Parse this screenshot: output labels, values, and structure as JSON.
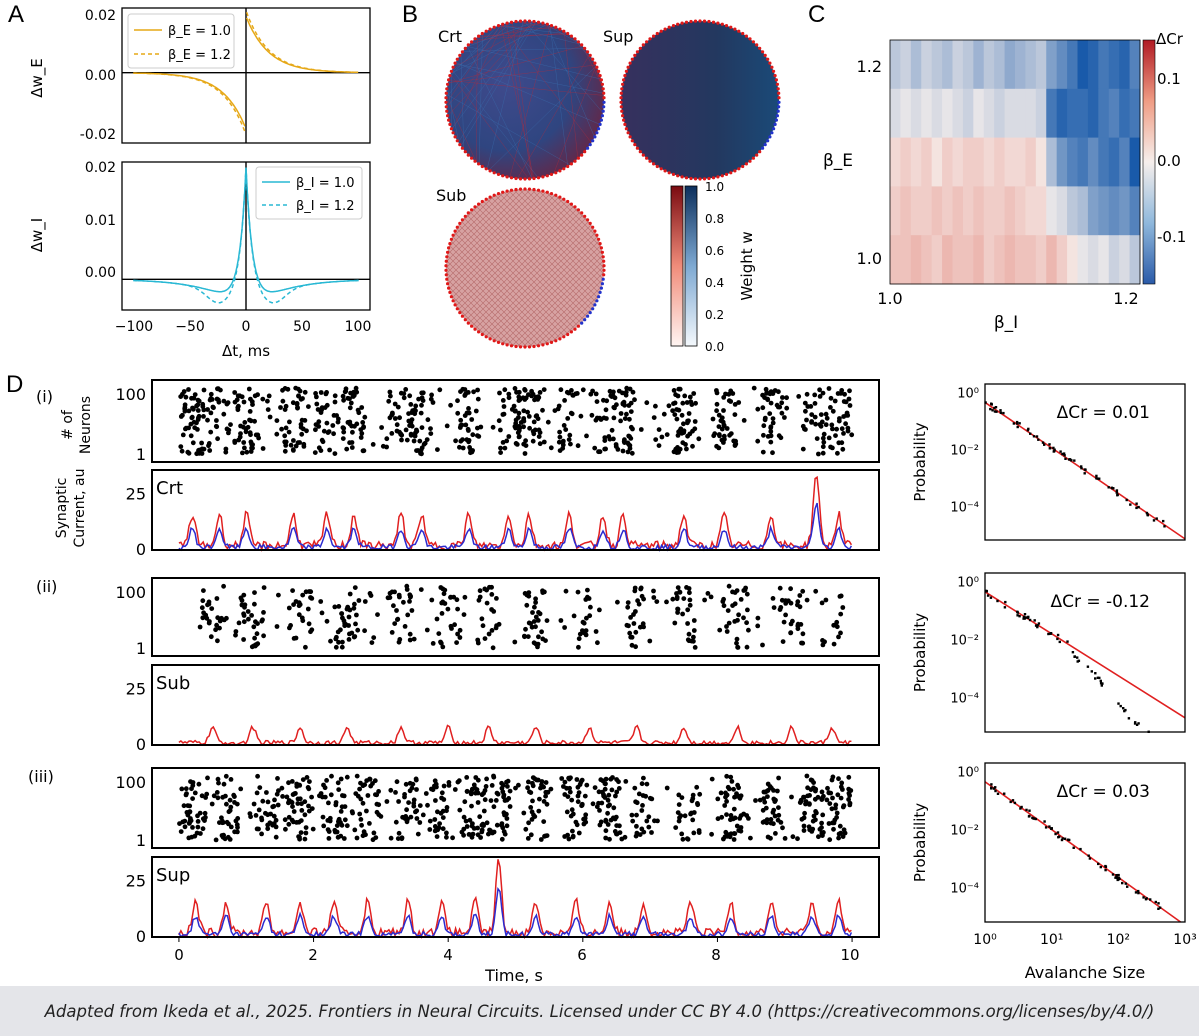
{
  "panels": {
    "A": "A",
    "B": "B",
    "C": "C",
    "D": "D"
  },
  "colors": {
    "exc": "#e6a817",
    "inh": "#29b8d4",
    "red": "#e02020",
    "blue": "#2b2bd0",
    "dots": "#000000"
  },
  "chart_data": [
    {
      "id": "A-top",
      "type": "line",
      "ylabel": "Δw_E",
      "yticks": [
        "0.02",
        "0.00",
        "-0.02"
      ],
      "ylim": [
        -0.025,
        0.023
      ],
      "xlim": [
        -110,
        110
      ],
      "series": [
        {
          "name": "β_E = 1.0",
          "style": "solid",
          "amplitude": 0.02,
          "tau": 20
        },
        {
          "name": "β_E = 1.2",
          "style": "dashed",
          "amplitude": 0.022,
          "tau": 20
        }
      ]
    },
    {
      "id": "A-bottom",
      "type": "line",
      "ylabel": "Δw_I",
      "xlabel": "Δt, ms",
      "yticks": [
        "0.02",
        "0.01",
        "0.00"
      ],
      "xticks": [
        "−100",
        "−50",
        "0",
        "50",
        "100"
      ],
      "ylim": [
        -0.0055,
        0.021
      ],
      "xlim": [
        -110,
        110
      ],
      "series": [
        {
          "name": "β_I = 1.0",
          "style": "solid",
          "peak": 0.02,
          "dip": -0.0025
        },
        {
          "name": "β_I = 1.2",
          "style": "dashed",
          "peak": 0.02,
          "dip": -0.0045
        }
      ]
    },
    {
      "id": "B",
      "type": "network",
      "networks": [
        {
          "label": "Crt"
        },
        {
          "label": "Sup"
        },
        {
          "label": "Sub"
        }
      ],
      "colorbar": {
        "label": "Weight w",
        "ticks": [
          "1.0",
          "0.8",
          "0.6",
          "0.4",
          "0.2",
          "0.0"
        ]
      }
    },
    {
      "id": "C",
      "type": "heatmap",
      "xlabel": "β_I",
      "ylabel": "β_E",
      "xticks": [
        "1.0",
        "1.2"
      ],
      "yticks": [
        "1.2",
        "1.0"
      ],
      "colorbar": {
        "label": "ΔCr",
        "ticks": [
          "0.1",
          "0.0",
          "-0.1"
        ],
        "range": [
          -0.15,
          0.15
        ]
      },
      "rows": [
        [
          -0.04,
          -0.03,
          -0.05,
          -0.03,
          -0.04,
          -0.05,
          -0.03,
          -0.04,
          -0.06,
          -0.04,
          -0.05,
          -0.07,
          -0.06,
          -0.05,
          -0.04,
          -0.08,
          -0.1,
          -0.12,
          -0.15,
          -0.14,
          -0.12,
          -0.13,
          -0.14,
          -0.11
        ],
        [
          -0.02,
          -0.01,
          -0.02,
          -0.01,
          -0.02,
          -0.01,
          -0.02,
          -0.03,
          -0.01,
          -0.02,
          -0.03,
          -0.02,
          -0.02,
          -0.02,
          -0.03,
          -0.12,
          -0.14,
          -0.13,
          -0.13,
          -0.14,
          -0.12,
          -0.11,
          -0.13,
          -0.12
        ],
        [
          0.02,
          0.03,
          0.02,
          0.03,
          0.01,
          0.03,
          0.02,
          0.03,
          0.03,
          0.02,
          0.03,
          0.02,
          0.02,
          0.03,
          0.01,
          -0.05,
          -0.09,
          -0.11,
          -0.12,
          -0.1,
          -0.12,
          -0.13,
          -0.11,
          -0.15
        ],
        [
          0.03,
          0.04,
          0.03,
          0.03,
          0.04,
          0.03,
          0.04,
          0.03,
          0.04,
          0.03,
          0.03,
          0.04,
          0.03,
          0.02,
          0.02,
          -0.01,
          -0.02,
          -0.04,
          -0.05,
          -0.08,
          -0.09,
          -0.1,
          -0.09,
          -0.11
        ],
        [
          0.04,
          0.04,
          0.05,
          0.04,
          0.03,
          0.05,
          0.04,
          0.04,
          0.05,
          0.03,
          0.04,
          0.05,
          0.04,
          0.04,
          0.03,
          0.05,
          0.03,
          0.01,
          -0.01,
          -0.02,
          -0.01,
          -0.03,
          -0.02,
          -0.04
        ]
      ]
    },
    {
      "id": "D",
      "type": "raster_and_current",
      "rows": [
        {
          "roman": "(i)",
          "label": "Crt",
          "blue": true,
          "burst_times": [
            0.2,
            0.6,
            1.0,
            1.7,
            2.2,
            2.6,
            3.3,
            3.6,
            4.3,
            4.9,
            5.2,
            5.8,
            6.3,
            6.6,
            7.5,
            8.1,
            8.8,
            9.45,
            9.8
          ],
          "big_peak": {
            "t": 9.48,
            "value": 35
          }
        },
        {
          "roman": "(ii)",
          "label": "Sub",
          "blue": false,
          "burst_times": [
            0.5,
            1.1,
            1.8,
            2.5,
            3.3,
            4.0,
            4.6,
            5.3,
            6.1,
            6.8,
            7.5,
            8.3,
            9.1,
            9.7
          ]
        },
        {
          "roman": "(iii)",
          "label": "Sup",
          "blue": true,
          "burst_times": [
            0.25,
            0.7,
            1.3,
            1.8,
            2.3,
            2.8,
            3.4,
            3.9,
            4.4,
            4.75,
            5.3,
            5.9,
            6.4,
            6.9,
            7.6,
            8.2,
            8.8,
            9.4,
            9.8
          ],
          "big_peak": {
            "t": 4.75,
            "value": 34
          }
        }
      ],
      "raster_ylabel": "# of Neurons",
      "current_ylabel": "Synaptic Current, au",
      "raster_yticks": [
        "100",
        "1"
      ],
      "current_yticks": [
        "25",
        "0"
      ],
      "xlabel": "Time, s",
      "xticks": [
        "0",
        "2",
        "4",
        "6",
        "8",
        "10"
      ],
      "xlim": [
        -0.4,
        10.4
      ],
      "current_ylim": [
        0,
        36
      ]
    },
    {
      "id": "D-right",
      "type": "scatter",
      "scale": "log-log",
      "xlabel": "Avalanche Size",
      "ylabel": "Probability",
      "xticks": [
        "10⁰",
        "10¹",
        "10²",
        "10³"
      ],
      "yticks": [
        "10⁰",
        "10⁻²",
        "10⁻⁴"
      ],
      "xlim": [
        1,
        1000
      ],
      "ylim": [
        6.5e-06,
        2
      ],
      "panels": [
        {
          "text": "ΔCr = 0.01",
          "fit_exponent": -1.6,
          "fit_start": 0.45
        },
        {
          "text": "ΔCr = -0.12",
          "fit_exponent": -1.45,
          "fit_start": 0.45
        },
        {
          "text": "ΔCr = 0.03",
          "fit_exponent": -1.65,
          "fit_start": 0.45
        }
      ]
    }
  ],
  "caption": "Adapted from Ikeda et al., 2025. Frontiers in Neural Circuits. Licensed under CC BY 4.0 (https://creativecommons.org/licenses/by/4.0/)"
}
